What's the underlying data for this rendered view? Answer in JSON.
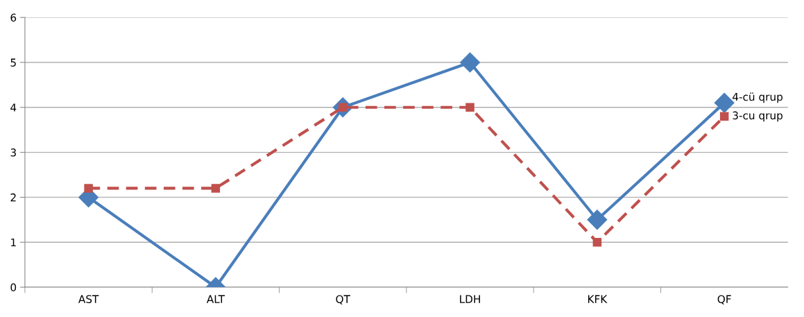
{
  "chart_data": {
    "type": "line",
    "categories": [
      "AST",
      "ALT",
      "QT",
      "LDH",
      "KFK",
      "QF"
    ],
    "series": [
      {
        "name": "4-cü qrup",
        "color": "#4a7ebb",
        "values": [
          2,
          0,
          4,
          5,
          1.5,
          4.1
        ],
        "marker": "diamond",
        "line_style": "solid"
      },
      {
        "name": "3-cu qrup",
        "color": "#c0504d",
        "values": [
          2.2,
          2.2,
          4,
          4,
          1,
          3.8
        ],
        "marker": "square",
        "line_style": "dashed"
      }
    ],
    "ylim": [
      0,
      6
    ],
    "yticks": [
      0,
      1,
      2,
      3,
      4,
      5,
      6
    ],
    "grid": "y",
    "legend": false
  }
}
